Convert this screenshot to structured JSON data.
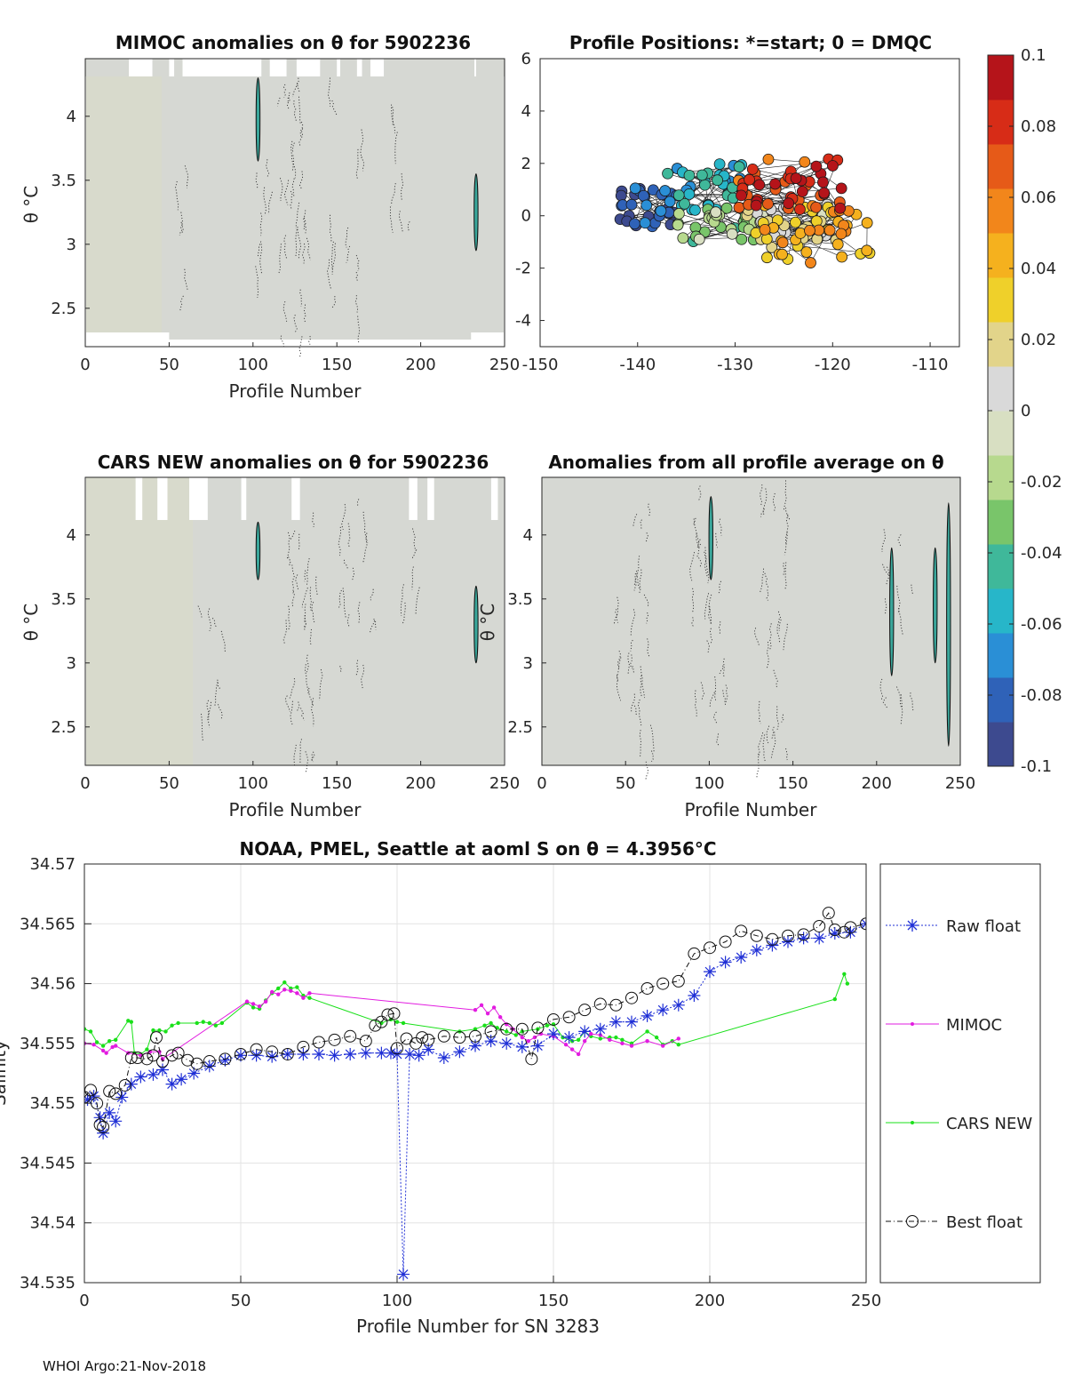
{
  "chart_data": [
    {
      "id": "mimoc",
      "type": "heatmap",
      "title": "MIMOC anomalies on θ  for 5902236",
      "xlabel": "Profile Number",
      "ylabel": "θ °C",
      "xlim": [
        0,
        250
      ],
      "ylim": [
        2.2,
        4.45
      ],
      "xticks": [
        "0",
        "50",
        "100",
        "150",
        "200",
        "250"
      ],
      "yticks": [
        "2.5",
        "3",
        "3.5",
        "4"
      ],
      "values_note": "anomalies near 0 (grey) across most of field",
      "gaps": [
        [
          0,
          4.35,
          4.45
        ],
        [
          72,
          4.35,
          4.45
        ],
        [
          205,
          4.35,
          4.45
        ]
      ]
    },
    {
      "id": "positions",
      "type": "scatter",
      "title": "Profile Positions: *=start; 0 = DMQC",
      "xlim": [
        -150,
        -107
      ],
      "ylim": [
        -5,
        6
      ],
      "xticks": [
        "-150",
        "-140",
        "-130",
        "-120",
        "-110"
      ],
      "yticks": [
        "-4",
        "-2",
        "0",
        "2",
        "4",
        "6"
      ]
    },
    {
      "id": "cars",
      "type": "heatmap",
      "title": "CARS NEW anomalies on θ for 5902236",
      "xlabel": "Profile Number",
      "ylabel": "θ °C",
      "xlim": [
        0,
        250
      ],
      "ylim": [
        2.2,
        4.45
      ],
      "xticks": [
        "0",
        "50",
        "100",
        "150",
        "200",
        "250"
      ],
      "yticks": [
        "2.5",
        "3",
        "3.5",
        "4"
      ]
    },
    {
      "id": "allprof",
      "type": "heatmap",
      "title": "Anomalies from all profile average on θ",
      "xlabel": "Profile Number",
      "ylabel": "θ °C",
      "xlim": [
        0,
        250
      ],
      "ylim": [
        2.2,
        4.45
      ],
      "xticks": [
        "0",
        "50",
        "100",
        "150",
        "200",
        "250"
      ],
      "yticks": [
        "2.5",
        "3",
        "3.5",
        "4"
      ]
    },
    {
      "id": "colorbar",
      "type": "heatmap",
      "clim": [
        -0.1,
        0.1
      ],
      "ticks": [
        "0.1",
        "0.08",
        "0.06",
        "0.04",
        "0.02",
        "0",
        "-0.02",
        "-0.04",
        "-0.06",
        "-0.08",
        "-0.1"
      ],
      "colors": [
        "#3d4a8f",
        "#2f62b8",
        "#2a8fd6",
        "#27b6c9",
        "#3fb89a",
        "#79c56a",
        "#b7d98e",
        "#d8dfc2",
        "#d9d9d9",
        "#e2d48a",
        "#efd02a",
        "#f5b11e",
        "#f2861b",
        "#e65a18",
        "#d72c17",
        "#b5141a"
      ]
    },
    {
      "id": "salinity",
      "type": "line",
      "title": "NOAA, PMEL, Seattle at aoml S on θ = 4.3956°C",
      "xlabel": "Profile Number for SN 3283",
      "ylabel": "Salinity",
      "xlim": [
        0,
        250
      ],
      "ylim": [
        34.535,
        34.57
      ],
      "xticks": [
        "0",
        "50",
        "100",
        "150",
        "200",
        "250"
      ],
      "yticks": [
        "34.535",
        "34.54",
        "34.545",
        "34.55",
        "34.555",
        "34.56",
        "34.565",
        "34.57"
      ],
      "grid": true,
      "legend_position": "outside-right",
      "series": [
        {
          "name": "Raw float",
          "color": "#1f2fd6",
          "x": [
            1,
            3,
            5,
            6,
            8,
            10,
            12,
            15,
            18,
            22,
            25,
            28,
            31,
            35,
            40,
            45,
            50,
            55,
            60,
            65,
            70,
            75,
            80,
            85,
            90,
            95,
            98,
            100,
            102,
            104,
            107,
            110,
            115,
            120,
            125,
            130,
            135,
            140,
            145,
            150,
            155,
            160,
            165,
            170,
            175,
            180,
            185,
            190,
            195,
            200,
            205,
            210,
            215,
            220,
            225,
            230,
            235,
            240,
            245,
            250
          ],
          "y": [
            34.5503,
            34.5506,
            34.5488,
            34.5475,
            34.5492,
            34.5485,
            34.5505,
            34.5516,
            34.5522,
            34.5524,
            34.5528,
            34.5516,
            34.552,
            34.5525,
            34.5531,
            34.5536,
            34.554,
            34.554,
            34.5539,
            34.5541,
            34.5541,
            34.5541,
            34.554,
            34.5541,
            34.5542,
            34.5542,
            34.5542,
            34.5541,
            34.5357,
            34.5541,
            34.554,
            34.5545,
            34.5538,
            34.5543,
            34.5548,
            34.5552,
            34.555,
            34.5547,
            34.5548,
            34.5558,
            34.5555,
            34.556,
            34.5562,
            34.5568,
            34.5568,
            34.5573,
            34.5578,
            34.5582,
            34.559,
            34.561,
            34.5618,
            34.5622,
            34.5628,
            34.5632,
            34.5635,
            34.5638,
            34.5638,
            34.5642,
            34.5643,
            34.565
          ]
        },
        {
          "name": "MIMOC",
          "color": "#e21ce0",
          "x": [
            0,
            3,
            6,
            7,
            9,
            10,
            14,
            18,
            21,
            24,
            25,
            52,
            54,
            56,
            58,
            60,
            62,
            64,
            66,
            68,
            70,
            72,
            125,
            127,
            129,
            131,
            133,
            135,
            137,
            140,
            142,
            144,
            146,
            150,
            154,
            156,
            158,
            160,
            162,
            165,
            168,
            172,
            175,
            180,
            185,
            190
          ],
          "y": [
            34.555,
            34.5549,
            34.5544,
            34.5542,
            34.5547,
            34.5548,
            34.5542,
            34.554,
            34.5543,
            34.5543,
            34.5537,
            34.5585,
            34.5583,
            34.5581,
            34.5585,
            34.5593,
            34.5591,
            34.5595,
            34.5594,
            34.5592,
            34.5588,
            34.5592,
            34.5578,
            34.5582,
            34.5575,
            34.558,
            34.5572,
            34.5566,
            34.5562,
            34.5555,
            34.5552,
            34.5555,
            34.5558,
            34.5556,
            34.5549,
            34.5545,
            34.5541,
            34.5552,
            34.5558,
            34.5557,
            34.5553,
            34.555,
            34.5548,
            34.5552,
            34.5548,
            34.5554
          ]
        },
        {
          "name": "CARS NEW",
          "color": "#1ae01a",
          "x": [
            0,
            2,
            4,
            6,
            8,
            10,
            14,
            15,
            16,
            18,
            20,
            22,
            24,
            26,
            28,
            30,
            36,
            38,
            40,
            42,
            44,
            52,
            54,
            56,
            58,
            60,
            62,
            64,
            66,
            68,
            70,
            72,
            95,
            98,
            100,
            102,
            120,
            125,
            128,
            130,
            132,
            135,
            138,
            140,
            145,
            148,
            150,
            153,
            156,
            158,
            160,
            162,
            165,
            168,
            170,
            172,
            175,
            180,
            183,
            185,
            188,
            190,
            240,
            243,
            244
          ],
          "y": [
            34.5562,
            34.556,
            34.5551,
            34.5548,
            34.5552,
            34.5553,
            34.5569,
            34.5568,
            34.5542,
            34.5541,
            34.5545,
            34.5561,
            34.5561,
            34.556,
            34.5565,
            34.5567,
            34.5567,
            34.5568,
            34.5567,
            34.5565,
            34.5567,
            34.5584,
            34.558,
            34.5579,
            34.5586,
            34.5592,
            34.5596,
            34.5601,
            34.5596,
            34.5597,
            34.559,
            34.5588,
            34.5567,
            34.557,
            34.5568,
            34.5567,
            34.556,
            34.5562,
            34.5565,
            34.5567,
            34.5563,
            34.556,
            34.5557,
            34.556,
            34.5562,
            34.5565,
            34.5566,
            34.5555,
            34.5552,
            34.5553,
            34.556,
            34.5556,
            34.5554,
            34.5555,
            34.5555,
            34.5553,
            34.555,
            34.556,
            34.5555,
            34.5549,
            34.5552,
            34.5549,
            34.5587,
            34.5608,
            34.56
          ]
        },
        {
          "name": "Best float",
          "color": "#111111",
          "x": [
            0,
            2,
            4,
            5,
            6,
            8,
            10,
            13,
            15,
            17,
            20,
            22,
            23,
            25,
            28,
            30,
            33,
            36,
            40,
            45,
            50,
            55,
            60,
            65,
            70,
            75,
            80,
            85,
            90,
            93,
            95,
            97,
            99,
            100,
            103,
            106,
            108,
            110,
            115,
            120,
            125,
            130,
            135,
            140,
            143,
            145,
            150,
            155,
            160,
            165,
            170,
            175,
            180,
            185,
            190,
            195,
            200,
            205,
            210,
            215,
            220,
            225,
            230,
            235,
            238,
            240,
            243,
            245,
            250
          ],
          "y": [
            34.5505,
            34.5511,
            34.55,
            34.5482,
            34.548,
            34.551,
            34.5508,
            34.5515,
            34.5538,
            34.5538,
            34.5537,
            34.554,
            34.5555,
            34.5535,
            34.554,
            34.5542,
            34.5536,
            34.5533,
            34.5535,
            34.5537,
            34.5541,
            34.5545,
            34.5543,
            34.5541,
            34.5547,
            34.5551,
            34.5553,
            34.5556,
            34.5552,
            34.5565,
            34.5568,
            34.5574,
            34.5575,
            34.5546,
            34.5554,
            34.555,
            34.5555,
            34.5553,
            34.5556,
            34.5555,
            34.5556,
            34.556,
            34.5562,
            34.5562,
            34.5537,
            34.5563,
            34.557,
            34.5572,
            34.5578,
            34.5583,
            34.5582,
            34.5588,
            34.5596,
            34.56,
            34.5602,
            34.5625,
            34.563,
            34.5635,
            34.5644,
            34.564,
            34.5637,
            34.564,
            34.5641,
            34.5648,
            34.5659,
            34.5645,
            34.5643,
            34.5647,
            34.565
          ]
        }
      ]
    }
  ],
  "footer": "WHOI Argo:21-Nov-2018",
  "legend": {
    "raw": "Raw float",
    "mimoc": "MIMOC",
    "cars": "CARS NEW",
    "best": "Best float"
  }
}
